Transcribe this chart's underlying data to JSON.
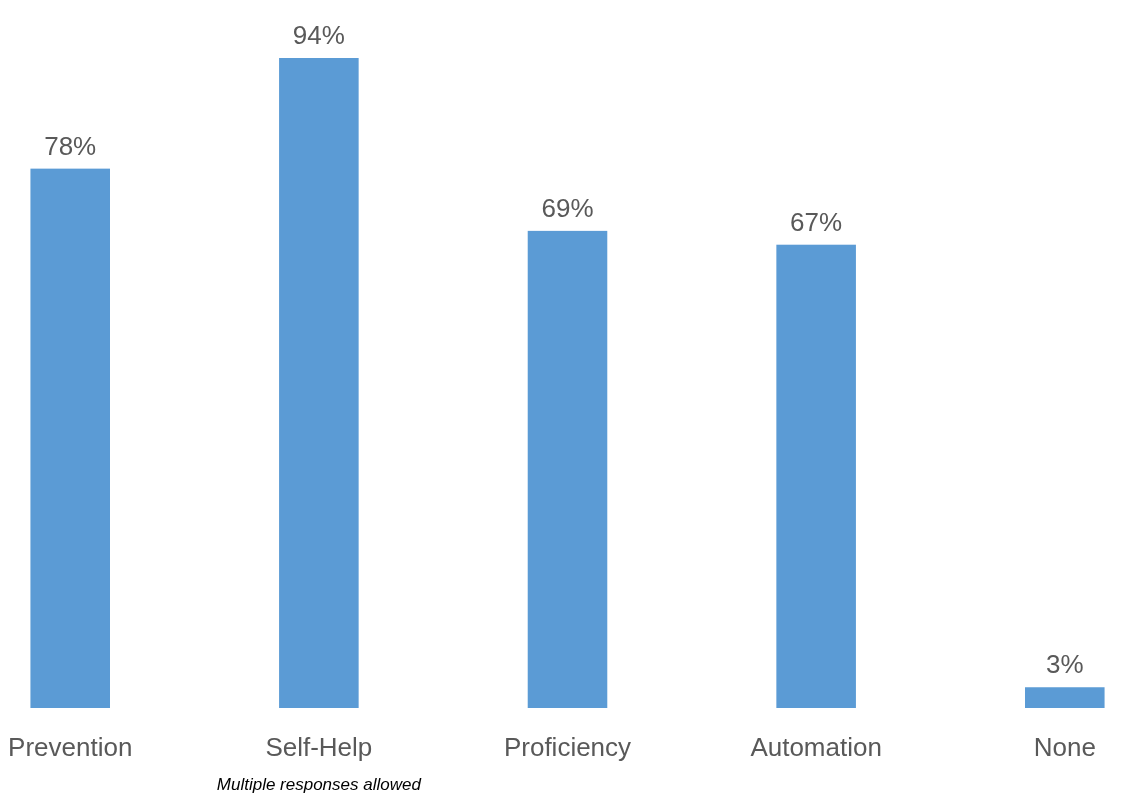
{
  "chart_data": {
    "type": "bar",
    "categories": [
      "Prevention",
      "Self-Help",
      "Proficiency",
      "Automation",
      "None"
    ],
    "values": [
      78,
      94,
      69,
      67,
      3
    ],
    "color": "#5b9bd5",
    "value_labels": [
      "78%",
      "94%",
      "69%",
      "67%",
      "3%"
    ],
    "annotations": [
      "Multiple responses allowed"
    ]
  }
}
